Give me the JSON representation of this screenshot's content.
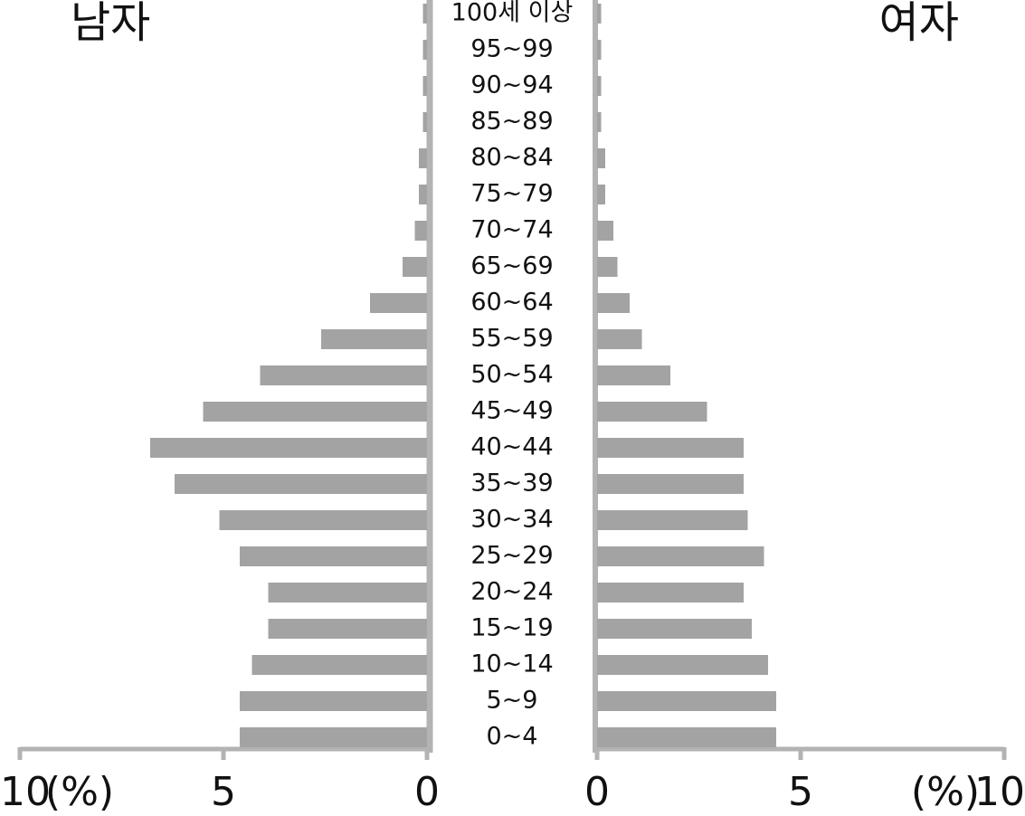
{
  "chart_data": {
    "type": "pyramid",
    "categories": [
      "100세 이상",
      "95~99",
      "90~94",
      "85~89",
      "80~84",
      "75~79",
      "70~74",
      "65~69",
      "60~64",
      "55~59",
      "50~54",
      "45~49",
      "40~44",
      "35~39",
      "30~34",
      "25~29",
      "20~24",
      "15~19",
      "10~14",
      "5~9",
      "0~4"
    ],
    "series": [
      {
        "name": "남자",
        "color": "#a3a3a3",
        "values": [
          0.1,
          0.1,
          0.1,
          0.1,
          0.2,
          0.2,
          0.3,
          0.6,
          1.4,
          2.6,
          4.1,
          5.5,
          6.8,
          6.2,
          5.1,
          4.6,
          3.9,
          3.9,
          4.3,
          4.6,
          4.6
        ]
      },
      {
        "name": "여자",
        "color": "#a3a3a3",
        "values": [
          0.1,
          0.1,
          0.1,
          0.1,
          0.2,
          0.2,
          0.4,
          0.5,
          0.8,
          1.1,
          1.8,
          2.7,
          3.6,
          3.6,
          3.7,
          4.1,
          3.6,
          3.8,
          4.2,
          4.4,
          4.4
        ]
      }
    ],
    "x_label": "(%)",
    "xlim": [
      0,
      10
    ],
    "xticks": [
      0,
      5,
      10
    ]
  }
}
